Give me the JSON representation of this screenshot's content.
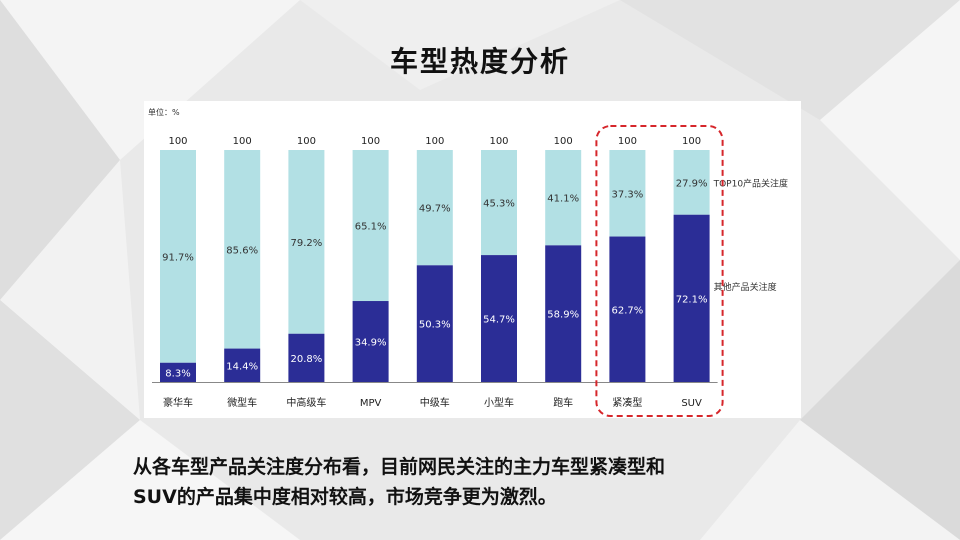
{
  "slide": {
    "title": "车型热度分析",
    "paragraph_lines": [
      "从各车型产品关注度分布看，目前网民关注的主力车型紧凑型和",
      "SUV的产品集中度相对较高，市场竞争更为激烈。"
    ]
  },
  "chart_data": {
    "type": "bar",
    "stacked": true,
    "unit_label": "单位：%",
    "categories": [
      "豪华车",
      "微型车",
      "中高级车",
      "MPV",
      "中级车",
      "小型车",
      "跑车",
      "紧凑型",
      "SUV"
    ],
    "totals": [
      100,
      100,
      100,
      100,
      100,
      100,
      100,
      100,
      100
    ],
    "series": [
      {
        "name": "其他产品关注度",
        "values": [
          8.3,
          14.4,
          20.8,
          34.9,
          50.3,
          54.7,
          58.9,
          62.7,
          72.1
        ],
        "labels": [
          "8.3%",
          "14.4%",
          "20.8%",
          "34.9%",
          "50.3%",
          "54.7%",
          "58.9%",
          "62.7%",
          "72.1%"
        ]
      },
      {
        "name": "TOP10产品关注度",
        "values": [
          91.7,
          85.6,
          79.2,
          65.1,
          49.7,
          45.3,
          41.1,
          37.3,
          27.9
        ],
        "labels": [
          "91.7%",
          "85.6%",
          "79.2%",
          "65.1%",
          "49.7%",
          "45.3%",
          "41.1%",
          "37.3%",
          "27.9%"
        ]
      }
    ],
    "ylim": [
      0,
      100
    ],
    "highlight_categories": [
      "紧凑型",
      "SUV"
    ],
    "colors": {
      "top10": "#b2e0e4",
      "other": "#2b2d96",
      "highlight": "#d6262b"
    }
  }
}
